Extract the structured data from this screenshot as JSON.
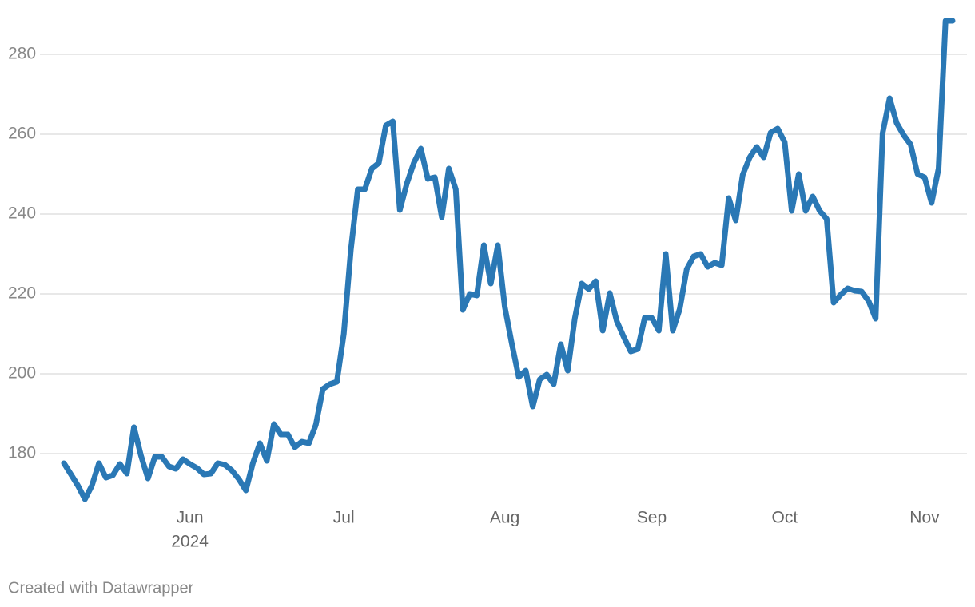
{
  "chart_data": {
    "type": "line",
    "categories": [
      null,
      null,
      null,
      null,
      null,
      null,
      null,
      null,
      null,
      null,
      null,
      null,
      null,
      null,
      null,
      null,
      null,
      null,
      "Jun",
      null,
      null,
      null,
      null,
      null,
      null,
      null,
      null,
      null,
      null,
      null,
      null,
      null,
      null,
      null,
      null,
      null,
      null,
      null,
      null,
      null,
      "Jul",
      null,
      null,
      null,
      null,
      null,
      null,
      null,
      null,
      null,
      null,
      null,
      null,
      null,
      null,
      null,
      null,
      null,
      null,
      null,
      null,
      null,
      null,
      "Aug",
      null,
      null,
      null,
      null,
      null,
      null,
      null,
      null,
      null,
      null,
      null,
      null,
      null,
      null,
      null,
      null,
      null,
      null,
      null,
      null,
      "Sep",
      null,
      null,
      null,
      null,
      null,
      null,
      null,
      null,
      null,
      null,
      null,
      null,
      null,
      null,
      null,
      null,
      null,
      null,
      "Oct",
      null,
      null,
      null,
      null,
      null,
      null,
      null,
      null,
      null,
      null,
      null,
      null,
      null,
      null,
      null,
      null,
      null,
      null,
      null,
      "Nov",
      null,
      null,
      null,
      null
    ],
    "year_label": "2024",
    "values": [
      177.6,
      174.8,
      172,
      168.6,
      172,
      177.6,
      174,
      174.6,
      177.4,
      175,
      186.6,
      179.6,
      173.8,
      179.2,
      179.2,
      176.8,
      176.2,
      178.6,
      177.4,
      176.4,
      174.8,
      175,
      177.6,
      177.2,
      175.8,
      173.6,
      170.8,
      177.6,
      182.6,
      178.2,
      187.4,
      184.8,
      184.8,
      181.6,
      183,
      182.6,
      187.2,
      196.2,
      197.4,
      198,
      210,
      231,
      246.2,
      246.2,
      251.4,
      252.8,
      262.2,
      263.2,
      241,
      247.6,
      252.8,
      256.4,
      248.8,
      249.2,
      239.2,
      251.4,
      246.2,
      216,
      220,
      219.6,
      232.2,
      222.6,
      232.2,
      216.8,
      207.6,
      199.2,
      200.8,
      191.8,
      198.6,
      199.8,
      197.4,
      207.4,
      200.8,
      213.8,
      222.6,
      221.2,
      223.2,
      210.8,
      220.2,
      213.2,
      209.2,
      205.6,
      206.2,
      214,
      214,
      210.8,
      230,
      210.8,
      216.2,
      226.2,
      229.4,
      230,
      226.8,
      227.8,
      227.2,
      244,
      238.4,
      249.8,
      254.2,
      256.8,
      254.2,
      260.4,
      261.4,
      258,
      240.8,
      250,
      240.8,
      244.4,
      240.8,
      238.8,
      217.8,
      219.8,
      221.4,
      220.8,
      220.6,
      218.2,
      213.8,
      260.2,
      269,
      262.8,
      259.8,
      257.4,
      250,
      249.2,
      242.8,
      251.4,
      288.4,
      288.4
    ],
    "color": "#2a78b5",
    "ylim": [
      166,
      290
    ],
    "yticks": [
      180,
      200,
      220,
      240,
      260,
      280
    ],
    "grid": true,
    "footer": "Created with Datawrapper"
  }
}
